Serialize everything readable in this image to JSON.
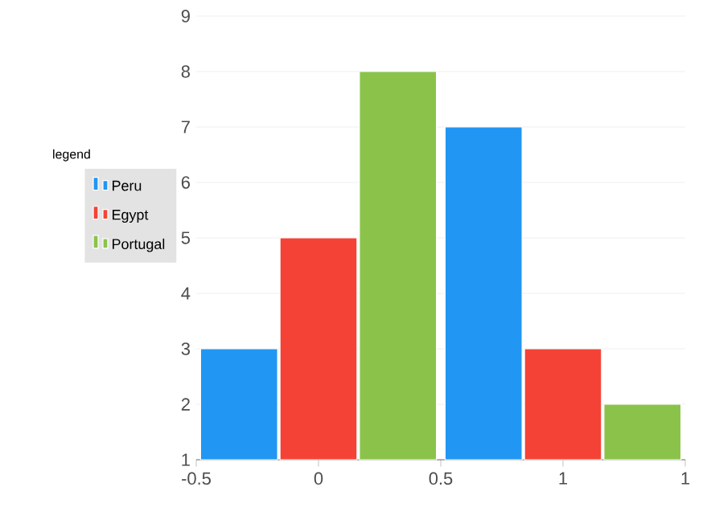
{
  "chart_data": {
    "type": "bar",
    "x": [
      0,
      1
    ],
    "legend_title": "legend",
    "series": [
      {
        "name": "Peru",
        "color": "#2196f3",
        "values": [
          3,
          7
        ]
      },
      {
        "name": "Egypt",
        "color": "#f44336",
        "values": [
          5,
          3
        ]
      },
      {
        "name": "Portugal",
        "color": "#8bc34a",
        "values": [
          8,
          2
        ]
      }
    ],
    "xlim": [
      -0.5,
      1.5
    ],
    "xticks": [
      -0.5,
      0,
      0.5,
      1,
      {
        "value": 1.5,
        "label": "1"
      }
    ],
    "ylim": [
      1,
      9
    ],
    "yticks": [
      1,
      2,
      3,
      4,
      5,
      6,
      7,
      8,
      9
    ],
    "grid": "y",
    "legend": "left"
  }
}
